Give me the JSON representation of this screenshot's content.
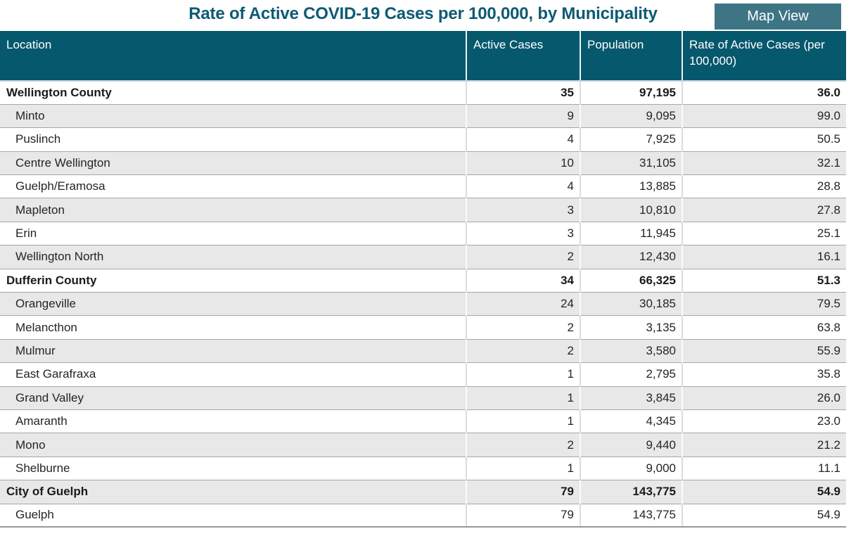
{
  "title": "Rate of Active COVID-19 Cases per 100,000, by Municipality",
  "map_view_label": "Map View",
  "colors": {
    "header_bg": "#06586c",
    "button_bg": "#3e7585",
    "title_text": "#0d5a73",
    "row_alt_bg": "#e8e8e8",
    "row_border": "#a6a6a6"
  },
  "table": {
    "columns": [
      "Location",
      "Active Cases",
      "Population",
      "Rate of Active Cases (per 100,000)"
    ],
    "rows": [
      {
        "location": "Wellington County",
        "active_cases": "35",
        "population": "97,195",
        "rate": "36.0",
        "is_summary": true
      },
      {
        "location": "Minto",
        "active_cases": "9",
        "population": "9,095",
        "rate": "99.0",
        "is_summary": false
      },
      {
        "location": "Puslinch",
        "active_cases": "4",
        "population": "7,925",
        "rate": "50.5",
        "is_summary": false
      },
      {
        "location": "Centre Wellington",
        "active_cases": "10",
        "population": "31,105",
        "rate": "32.1",
        "is_summary": false
      },
      {
        "location": "Guelph/Eramosa",
        "active_cases": "4",
        "population": "13,885",
        "rate": "28.8",
        "is_summary": false
      },
      {
        "location": "Mapleton",
        "active_cases": "3",
        "population": "10,810",
        "rate": "27.8",
        "is_summary": false
      },
      {
        "location": "Erin",
        "active_cases": "3",
        "population": "11,945",
        "rate": "25.1",
        "is_summary": false
      },
      {
        "location": "Wellington North",
        "active_cases": "2",
        "population": "12,430",
        "rate": "16.1",
        "is_summary": false
      },
      {
        "location": "Dufferin County",
        "active_cases": "34",
        "population": "66,325",
        "rate": "51.3",
        "is_summary": true
      },
      {
        "location": "Orangeville",
        "active_cases": "24",
        "population": "30,185",
        "rate": "79.5",
        "is_summary": false
      },
      {
        "location": "Melancthon",
        "active_cases": "2",
        "population": "3,135",
        "rate": "63.8",
        "is_summary": false
      },
      {
        "location": "Mulmur",
        "active_cases": "2",
        "population": "3,580",
        "rate": "55.9",
        "is_summary": false
      },
      {
        "location": "East Garafraxa",
        "active_cases": "1",
        "population": "2,795",
        "rate": "35.8",
        "is_summary": false
      },
      {
        "location": "Grand Valley",
        "active_cases": "1",
        "population": "3,845",
        "rate": "26.0",
        "is_summary": false
      },
      {
        "location": "Amaranth",
        "active_cases": "1",
        "population": "4,345",
        "rate": "23.0",
        "is_summary": false
      },
      {
        "location": "Mono",
        "active_cases": "2",
        "population": "9,440",
        "rate": "21.2",
        "is_summary": false
      },
      {
        "location": "Shelburne",
        "active_cases": "1",
        "population": "9,000",
        "rate": "11.1",
        "is_summary": false
      },
      {
        "location": "City of Guelph",
        "active_cases": "79",
        "population": "143,775",
        "rate": "54.9",
        "is_summary": true
      },
      {
        "location": "Guelph",
        "active_cases": "79",
        "population": "143,775",
        "rate": "54.9",
        "is_summary": false
      }
    ]
  }
}
